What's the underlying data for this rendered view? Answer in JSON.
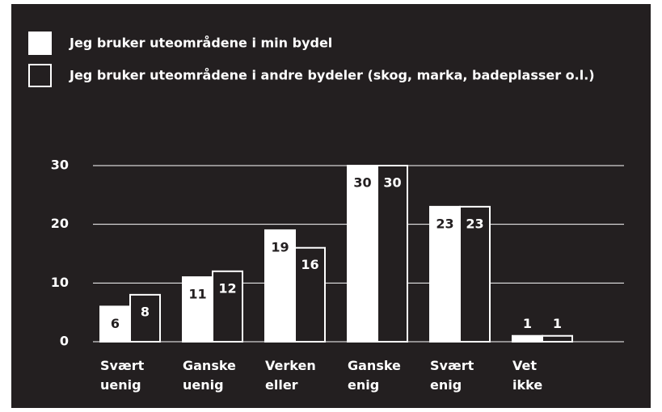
{
  "chart_data": {
    "type": "bar",
    "categories": [
      "Svært uenig",
      "Ganske uenig",
      "Verken eller",
      "Ganske enig",
      "Svært enig",
      "Vet ikke"
    ],
    "series": [
      {
        "name": "Jeg bruker uteområdene i min bydel",
        "color": "#ffffff",
        "values": [
          6,
          11,
          19,
          30,
          23,
          1
        ]
      },
      {
        "name": "Jeg bruker uteområdene i andre bydeler (skog, marka, badeplasser o.l.)",
        "color": "#231f20",
        "values": [
          8,
          12,
          16,
          30,
          23,
          1
        ]
      }
    ],
    "ylim": [
      0,
      30
    ],
    "yticks": [
      0,
      10,
      20,
      30
    ],
    "grid": true,
    "legend": "top-left"
  }
}
